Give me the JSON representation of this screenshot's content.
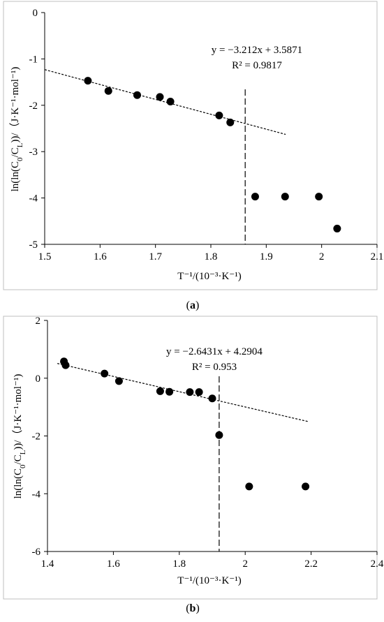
{
  "chart_data": [
    {
      "type": "scatter",
      "panel_label": "a",
      "xlabel": "T⁻¹/(10⁻³·K⁻¹)",
      "ylabel_parts": [
        "ln(ln(C",
        "0",
        "/C",
        "L",
        "))/（J·K⁻¹·mol⁻¹)"
      ],
      "xlim": [
        1.5,
        2.1
      ],
      "ylim": [
        -5,
        0
      ],
      "xticks": [
        1.5,
        1.6,
        1.7,
        1.8,
        1.9,
        2.0,
        2.1
      ],
      "xtick_labels": [
        "1.5",
        "1.6",
        "1.7",
        "1.8",
        "1.9",
        "2",
        "2.1"
      ],
      "yticks": [
        0,
        -1,
        -2,
        -3,
        -4,
        -5
      ],
      "ytick_labels": [
        "0",
        "-1",
        "-2",
        "-3",
        "-4",
        "-5"
      ],
      "grid": false,
      "equation": "y = −3.212x + 3.5871",
      "r_squared": "R² = 0.9817",
      "trendline": {
        "slope": -3.212,
        "intercept": 3.5871,
        "x_range": [
          1.5,
          1.935
        ]
      },
      "vline_x": 1.862,
      "points": [
        {
          "x": 1.578,
          "y": -1.47
        },
        {
          "x": 1.615,
          "y": -1.69
        },
        {
          "x": 1.667,
          "y": -1.78
        },
        {
          "x": 1.708,
          "y": -1.82
        },
        {
          "x": 1.727,
          "y": -1.92
        },
        {
          "x": 1.815,
          "y": -2.22
        },
        {
          "x": 1.835,
          "y": -2.37
        },
        {
          "x": 1.88,
          "y": -3.97
        },
        {
          "x": 1.934,
          "y": -3.97
        },
        {
          "x": 1.995,
          "y": -3.97
        },
        {
          "x": 2.028,
          "y": -4.66
        }
      ]
    },
    {
      "type": "scatter",
      "panel_label": "b",
      "xlabel": "T⁻¹/(10⁻³·K⁻¹)",
      "ylabel_parts": [
        "ln(ln(C",
        "0",
        "/C",
        "L",
        "))/（J·K⁻¹·mol⁻¹)"
      ],
      "xlim": [
        1.4,
        2.4
      ],
      "ylim": [
        -6,
        2
      ],
      "xticks": [
        1.4,
        1.6,
        1.8,
        2.0,
        2.2,
        2.4
      ],
      "xtick_labels": [
        "1.4",
        "1.6",
        "1.8",
        "2",
        "2.2",
        "2.4"
      ],
      "yticks": [
        2,
        0,
        -2,
        -4,
        -6
      ],
      "ytick_labels": [
        "2",
        "0",
        "-2",
        "-4",
        "-6"
      ],
      "grid": false,
      "equation": "y = −2.6431x + 4.2904",
      "r_squared": "R² = 0.953",
      "trendline": {
        "slope": -2.6431,
        "intercept": 4.2904,
        "x_range": [
          1.43,
          2.19
        ]
      },
      "vline_x": 1.921,
      "points": [
        {
          "x": 1.45,
          "y": 0.58
        },
        {
          "x": 1.455,
          "y": 0.45
        },
        {
          "x": 1.573,
          "y": 0.16
        },
        {
          "x": 1.617,
          "y": -0.1
        },
        {
          "x": 1.742,
          "y": -0.45
        },
        {
          "x": 1.77,
          "y": -0.47
        },
        {
          "x": 1.832,
          "y": -0.48
        },
        {
          "x": 1.86,
          "y": -0.48
        },
        {
          "x": 1.9,
          "y": -0.7
        },
        {
          "x": 1.921,
          "y": -1.97
        },
        {
          "x": 2.012,
          "y": -3.75
        },
        {
          "x": 2.183,
          "y": -3.75
        }
      ]
    }
  ]
}
